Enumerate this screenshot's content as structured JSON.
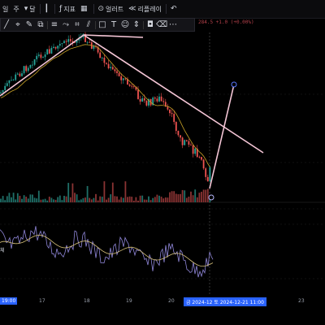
{
  "toolbar": {
    "items": [
      {
        "label": "일",
        "icon": ""
      },
      {
        "label": "주",
        "icon": ""
      },
      {
        "label": "달",
        "icon": "chevron-down"
      },
      {
        "label": "",
        "icon": "candle-type"
      },
      {
        "label": "지표",
        "icon": "indicator"
      },
      {
        "label": "",
        "icon": "templates"
      },
      {
        "label": "얼러트",
        "icon": "alert"
      },
      {
        "label": "리플레이",
        "icon": "replay"
      },
      {
        "label": "",
        "icon": "undo"
      }
    ]
  },
  "drawbar": {
    "tools": [
      "trendline-icon",
      "cursor-icon",
      "brush-icon",
      "pattern-icon",
      "fib-icon",
      "path-icon",
      "gann-icon",
      "channel-icon",
      "rectangle-icon",
      "text-icon",
      "emoji-icon",
      "measure-icon",
      "lock-icon",
      "trash-icon",
      "more-icon"
    ]
  },
  "price_info": "284.5 +1.0 (+0.00%)",
  "xaxis": {
    "labels": [
      "17",
      "18",
      "19",
      "20",
      "23"
    ],
    "left_time": "19:00",
    "crosshair": "금 2024-12  토 2024-12-21  11:00"
  },
  "left_label": "체",
  "colors": {
    "up": "#26a69a",
    "down": "#ef5350",
    "trendline": "#f5c6d6",
    "ma": "#c9a227",
    "osc_fast": "#8f86d8",
    "osc_slow": "#d8c27a"
  }
}
